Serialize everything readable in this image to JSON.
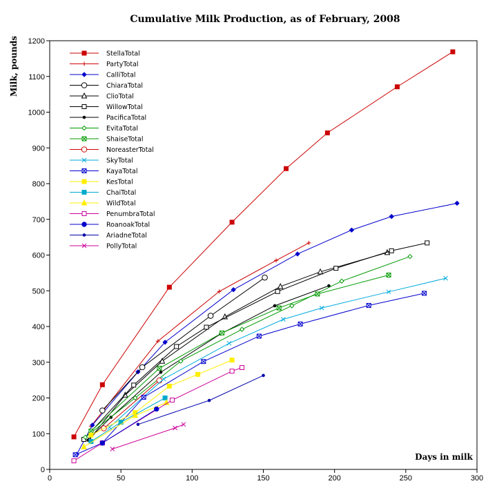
{
  "chart_data": {
    "type": "line",
    "title": "Cumulative Milk Production, as of February, 2008",
    "xlabel": "Days in milk",
    "ylabel": "Milk, pounds",
    "xlim": [
      0,
      300
    ],
    "ylim": [
      0,
      1200
    ],
    "xticks": [
      0,
      50,
      100,
      150,
      200,
      250,
      300
    ],
    "yticks": [
      0,
      100,
      200,
      300,
      400,
      500,
      600,
      700,
      800,
      900,
      1000,
      1100,
      1200
    ],
    "grid": false,
    "legend_position": "top-left",
    "series": [
      {
        "name": "StellaTotal",
        "color": "#cc0000",
        "marker": "square-filled",
        "x": [
          17,
          37,
          84,
          128,
          166,
          195,
          244,
          283
        ],
        "y": [
          91,
          237,
          510,
          692,
          842,
          942,
          1071,
          1169
        ]
      },
      {
        "name": "PartyTotal",
        "color": "#cc0000",
        "marker": "plus",
        "x": [
          29,
          76,
          119,
          159,
          182
        ],
        "y": [
          121,
          359,
          498,
          585,
          634
        ]
      },
      {
        "name": "CalliTotal",
        "color": "#0000cc",
        "marker": "diamond-filled",
        "x": [
          19,
          30,
          62,
          81,
          129,
          174,
          212,
          240,
          286
        ],
        "y": [
          42,
          124,
          273,
          356,
          503,
          603,
          670,
          708,
          745
        ]
      },
      {
        "name": "ChiaraTotal",
        "color": "#000000",
        "marker": "circle-open",
        "x": [
          37,
          65,
          113,
          151
        ],
        "y": [
          165,
          286,
          430,
          537
        ]
      },
      {
        "name": "ClioTotal",
        "color": "#000000",
        "marker": "triangle-open",
        "x": [
          28,
          53,
          79,
          123,
          162,
          190,
          237
        ],
        "y": [
          85,
          208,
          303,
          427,
          512,
          553,
          607
        ]
      },
      {
        "name": "WillowTotal",
        "color": "#000000",
        "marker": "square-open",
        "x": [
          24,
          59,
          89,
          110,
          160,
          201,
          240,
          265
        ],
        "y": [
          84,
          236,
          344,
          398,
          498,
          563,
          612,
          634
        ]
      },
      {
        "name": "PacificaTotal",
        "color": "#000000",
        "marker": "dot",
        "x": [
          27,
          43,
          78,
          120,
          158,
          196
        ],
        "y": [
          82,
          146,
          272,
          379,
          458,
          514
        ]
      },
      {
        "name": "EvitaTotal",
        "color": "#009900",
        "marker": "diamond-open",
        "x": [
          25,
          60,
          92,
          135,
          170,
          205,
          253
        ],
        "y": [
          90,
          200,
          303,
          392,
          458,
          527,
          596
        ]
      },
      {
        "name": "ShaiseTotal",
        "color": "#009900",
        "marker": "square-open-x",
        "x": [
          29,
          77,
          121,
          161,
          188,
          238
        ],
        "y": [
          107,
          283,
          382,
          452,
          491,
          544
        ]
      },
      {
        "name": "NoreasterTotal",
        "color": "#cc0000",
        "marker": "circle-open",
        "x": [
          38,
          77
        ],
        "y": [
          115,
          249
        ]
      },
      {
        "name": "SkyTotal",
        "color": "#00aadd",
        "marker": "x",
        "x": [
          42,
          80,
          126,
          164,
          191,
          238,
          278
        ],
        "y": [
          118,
          253,
          353,
          420,
          452,
          497,
          535
        ]
      },
      {
        "name": "KayaTotal",
        "color": "#0000cc",
        "marker": "square-open-x",
        "x": [
          18,
          37,
          66,
          108,
          147,
          176,
          224,
          263
        ],
        "y": [
          41,
          74,
          202,
          302,
          373,
          407,
          459,
          493
        ]
      },
      {
        "name": "KesTotal",
        "color": "#ffee00",
        "marker": "square-filled",
        "x": [
          29,
          60,
          84,
          104,
          128
        ],
        "y": [
          96,
          159,
          233,
          266,
          306
        ]
      },
      {
        "name": "ChaiTotal",
        "color": "#00aacc",
        "marker": "square-filled",
        "x": [
          29,
          50,
          81
        ],
        "y": [
          78,
          132,
          200
        ]
      },
      {
        "name": "WildTotal",
        "color": "#ffee00",
        "marker": "triangle-filled",
        "x": [
          24,
          60,
          82
        ],
        "y": [
          63,
          151,
          187
        ]
      },
      {
        "name": "PenumbraTotal",
        "color": "#cc0099",
        "marker": "square-open",
        "x": [
          17,
          37,
          86,
          128,
          135
        ],
        "y": [
          24,
          74,
          194,
          275,
          285
        ]
      },
      {
        "name": "RoanoakTotal",
        "color": "#0000cc",
        "marker": "circle-filled",
        "x": [
          37,
          75
        ],
        "y": [
          74,
          169
        ]
      },
      {
        "name": "AriadneTotal",
        "color": "#0000aa",
        "marker": "dot",
        "x": [
          62,
          112,
          150
        ],
        "y": [
          126,
          193,
          263
        ]
      },
      {
        "name": "PollyTotal",
        "color": "#cc0099",
        "marker": "x",
        "x": [
          44,
          88,
          94
        ],
        "y": [
          57,
          116,
          126
        ]
      }
    ]
  }
}
